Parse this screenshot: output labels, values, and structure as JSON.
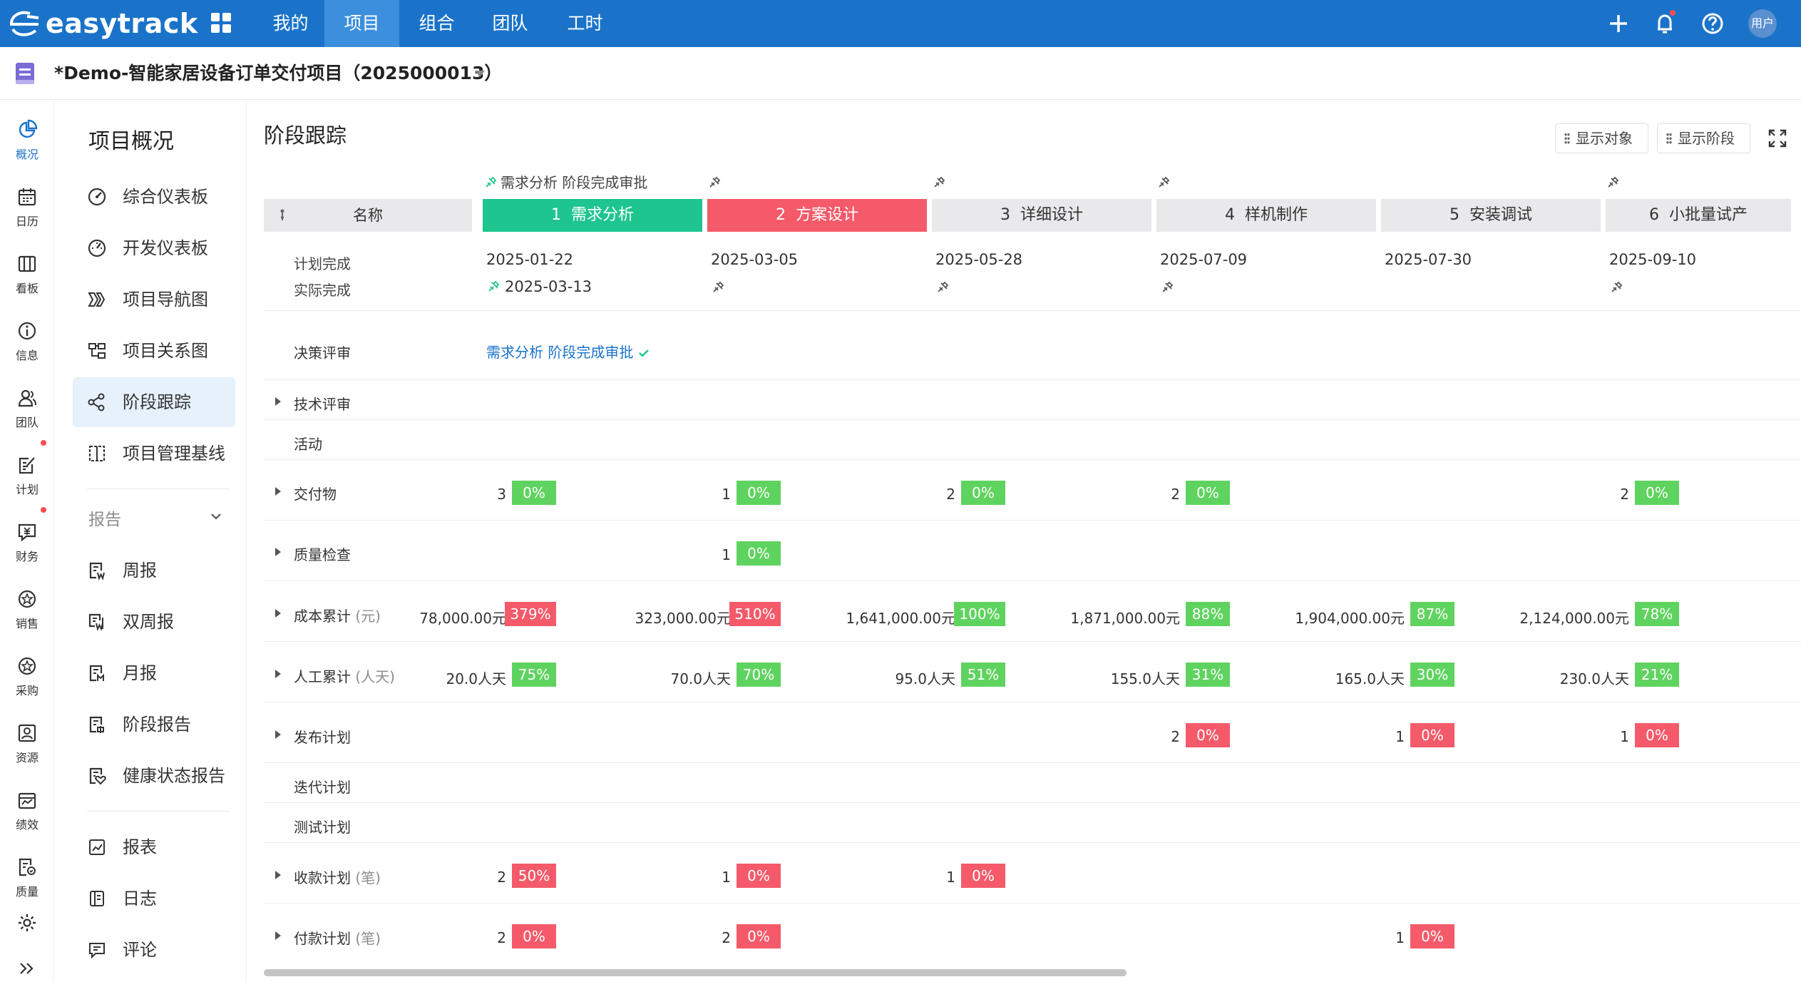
{
  "brand": {
    "name": "easytrack"
  },
  "nav": {
    "items": [
      "我的",
      "项目",
      "组合",
      "团队",
      "工时"
    ],
    "active_index": 1
  },
  "user": {
    "avatar_text": "用户"
  },
  "project": {
    "title": "*Demo-智能家居设备订单交付项目（2025000013）"
  },
  "rail": [
    {
      "label": "概况",
      "icon": "pie-chart-icon",
      "active": true
    },
    {
      "label": "日历",
      "icon": "calendar-icon"
    },
    {
      "label": "看板",
      "icon": "kanban-icon"
    },
    {
      "label": "信息",
      "icon": "info-icon"
    },
    {
      "label": "团队",
      "icon": "team-icon"
    },
    {
      "label": "计划",
      "icon": "plan-icon",
      "dot": true
    },
    {
      "label": "财务",
      "icon": "finance-icon",
      "dot": true
    },
    {
      "label": "销售",
      "icon": "sales-icon"
    },
    {
      "label": "采购",
      "icon": "purchase-icon"
    },
    {
      "label": "资源",
      "icon": "resource-icon"
    },
    {
      "label": "绩效",
      "icon": "performance-icon"
    },
    {
      "label": "质量",
      "icon": "quality-icon"
    }
  ],
  "sidebar": {
    "title": "项目概况",
    "items": [
      {
        "label": "综合仪表板",
        "icon": "dashboard-icon"
      },
      {
        "label": "开发仪表板",
        "icon": "dev-dashboard-icon"
      },
      {
        "label": "项目导航图",
        "icon": "navigation-map-icon"
      },
      {
        "label": "项目关系图",
        "icon": "relation-map-icon"
      },
      {
        "label": "阶段跟踪",
        "icon": "stage-tracking-icon",
        "active": true
      },
      {
        "label": "项目管理基线",
        "icon": "baseline-icon"
      }
    ],
    "report_group": "报告",
    "reports": [
      {
        "label": "周报",
        "icon": "weekly-report-icon"
      },
      {
        "label": "双周报",
        "icon": "biweekly-report-icon"
      },
      {
        "label": "月报",
        "icon": "monthly-report-icon"
      },
      {
        "label": "阶段报告",
        "icon": "stage-report-icon"
      },
      {
        "label": "健康状态报告",
        "icon": "health-report-icon"
      }
    ],
    "extras": [
      {
        "label": "报表",
        "icon": "chart-report-icon"
      },
      {
        "label": "日志",
        "icon": "log-icon"
      },
      {
        "label": "评论",
        "icon": "comment-icon"
      }
    ]
  },
  "page": {
    "title": "阶段跟踪",
    "show_objects": "显示对象",
    "show_stages": "显示阶段",
    "name_header": "名称",
    "gate_label_1": "需求分析 阶段完成审批",
    "stages": [
      {
        "no": "1",
        "name": "需求分析",
        "status": "done",
        "plan": "2025-01-22",
        "actual": "2025-03-13"
      },
      {
        "no": "2",
        "name": "方案设计",
        "status": "current",
        "plan": "2025-03-05",
        "actual": ""
      },
      {
        "no": "3",
        "name": "详细设计",
        "status": "todo",
        "plan": "2025-05-28",
        "actual": ""
      },
      {
        "no": "4",
        "name": "样机制作",
        "status": "todo",
        "plan": "2025-07-09",
        "actual": ""
      },
      {
        "no": "5",
        "name": "安装调试",
        "status": "todo",
        "plan": "2025-07-30",
        "actual": ""
      },
      {
        "no": "6",
        "name": "小批量试产",
        "status": "todo",
        "plan": "2025-09-10",
        "actual": ""
      }
    ],
    "labels": {
      "plan_finish": "计划完成",
      "actual_finish": "实际完成",
      "decision_review": "决策评审",
      "decision_link": "需求分析 阶段完成审批",
      "tech_review": "技术评审",
      "activity": "活动",
      "deliverable": "交付物",
      "quality_check": "质量检查",
      "cost": "成本累计",
      "cost_unit": "(元)",
      "labor": "人工累计",
      "labor_unit": "(人天)",
      "release": "发布计划",
      "iteration": "迭代计划",
      "test": "测试计划",
      "receipt": "收款计划",
      "receipt_unit": "(笔)",
      "payment": "付款计划",
      "payment_unit": "(笔)"
    },
    "rows": {
      "deliverable": [
        [
          "3",
          "0%",
          "g"
        ],
        [
          "1",
          "0%",
          "g"
        ],
        [
          "2",
          "0%",
          "g"
        ],
        [
          "2",
          "0%",
          "g"
        ],
        null,
        [
          "2",
          "0%",
          "g"
        ]
      ],
      "quality_check": [
        null,
        [
          "1",
          "0%",
          "g"
        ],
        null,
        null,
        null,
        null
      ],
      "cost": [
        [
          "78,000.00元",
          "379%",
          "r"
        ],
        [
          "323,000.00元",
          "510%",
          "r"
        ],
        [
          "1,641,000.00元",
          "100%",
          "g"
        ],
        [
          "1,871,000.00元",
          "88%",
          "g"
        ],
        [
          "1,904,000.00元",
          "87%",
          "g"
        ],
        [
          "2,124,000.00元",
          "78%",
          "g"
        ]
      ],
      "labor": [
        [
          "20.0人天",
          "75%",
          "g"
        ],
        [
          "70.0人天",
          "70%",
          "g"
        ],
        [
          "95.0人天",
          "51%",
          "g"
        ],
        [
          "155.0人天",
          "31%",
          "g"
        ],
        [
          "165.0人天",
          "30%",
          "g"
        ],
        [
          "230.0人天",
          "21%",
          "g"
        ]
      ],
      "release": [
        null,
        null,
        null,
        [
          "2",
          "0%",
          "r"
        ],
        [
          "1",
          "0%",
          "r"
        ],
        [
          "1",
          "0%",
          "r"
        ]
      ],
      "receipt": [
        [
          "2",
          "50%",
          "r"
        ],
        [
          "1",
          "0%",
          "r"
        ],
        [
          "1",
          "0%",
          "r"
        ],
        null,
        null,
        null
      ],
      "payment": [
        [
          "2",
          "0%",
          "r"
        ],
        [
          "2",
          "0%",
          "r"
        ],
        null,
        null,
        [
          "1",
          "0%",
          "r"
        ],
        null
      ]
    }
  }
}
